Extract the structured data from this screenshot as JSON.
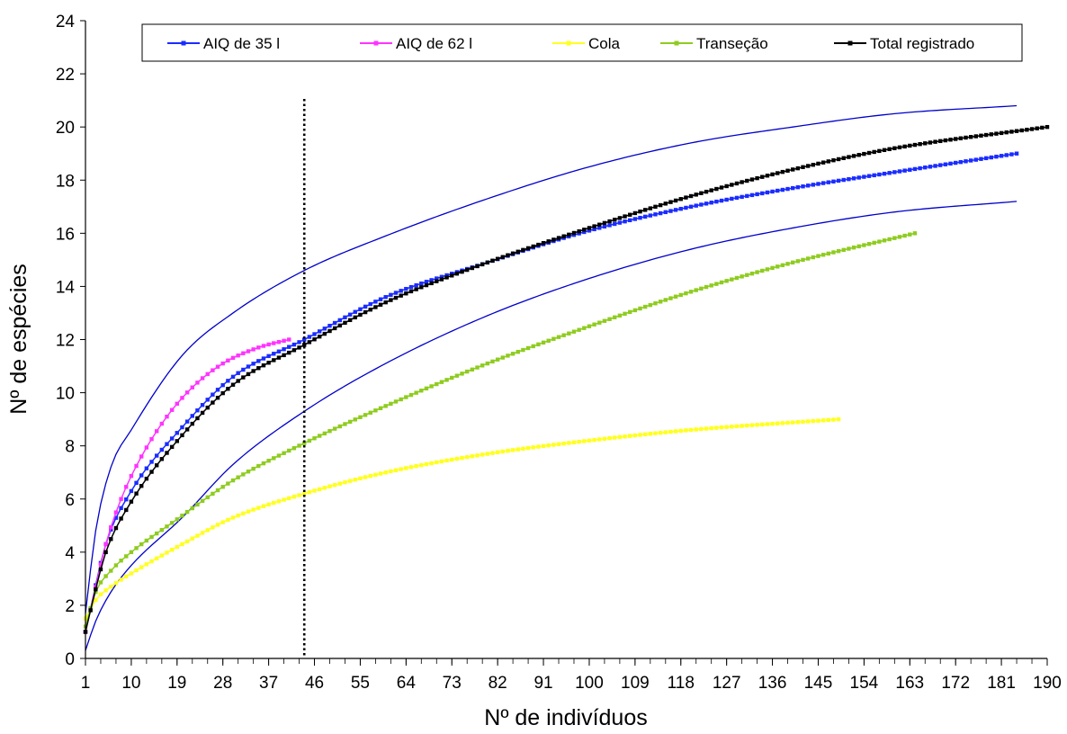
{
  "chart_data": {
    "type": "line",
    "xlabel": "Nº de indivíduos",
    "ylabel": "Nº de espécies",
    "xlim": [
      1,
      190
    ],
    "ylim": [
      0,
      24
    ],
    "x_ticks": [
      "1",
      "10",
      "19",
      "28",
      "37",
      "46",
      "55",
      "64",
      "73",
      "82",
      "91",
      "100",
      "109",
      "118",
      "127",
      "136",
      "145",
      "154",
      "163",
      "172",
      "181",
      "190"
    ],
    "y_ticks": [
      "0",
      "2",
      "4",
      "6",
      "8",
      "10",
      "12",
      "14",
      "16",
      "18",
      "20",
      "22",
      "24"
    ],
    "legend_position": "top",
    "reference_line_x": 44,
    "series": [
      {
        "name": "AIQ de 35 l",
        "color": "#1a2cff",
        "marker": "square",
        "n": 184,
        "x": [
          1,
          5,
          10,
          20,
          30,
          44,
          60,
          80,
          100,
          120,
          140,
          160,
          184
        ],
        "y": [
          1,
          4.3,
          6.3,
          8.7,
          10.6,
          12.0,
          13.6,
          14.9,
          16.1,
          17.0,
          17.7,
          18.3,
          19.0
        ]
      },
      {
        "name": "AIQ de 62 l",
        "color": "#ff33ff",
        "marker": "square",
        "n": 41,
        "x": [
          1,
          3,
          5,
          8,
          12,
          17,
          22,
          28,
          35,
          41
        ],
        "y": [
          1,
          2.7,
          4.3,
          6.0,
          7.6,
          9.1,
          10.2,
          11.1,
          11.7,
          12.0
        ]
      },
      {
        "name": "Cola",
        "color": "#ffff22",
        "marker": "square",
        "n": 149,
        "x": [
          1,
          3,
          6,
          10,
          20,
          30,
          44,
          60,
          80,
          100,
          120,
          149
        ],
        "y": [
          1.5,
          2.2,
          2.7,
          3.2,
          4.3,
          5.3,
          6.2,
          7.0,
          7.7,
          8.2,
          8.6,
          9.0
        ]
      },
      {
        "name": "Transeção",
        "color": "#8ecc1f",
        "marker": "square",
        "n": 164,
        "x": [
          1,
          3,
          6,
          10,
          18,
          30,
          44,
          60,
          80,
          100,
          120,
          140,
          164
        ],
        "y": [
          1.2,
          2.5,
          3.3,
          4.0,
          5.1,
          6.7,
          8.1,
          9.5,
          11.1,
          12.5,
          13.8,
          14.9,
          16.0
        ]
      },
      {
        "name": "Total registrado",
        "color": "#000000",
        "marker": "square",
        "n": 190,
        "x": [
          1,
          3,
          5,
          10,
          20,
          30,
          44,
          60,
          80,
          100,
          120,
          140,
          160,
          190
        ],
        "y": [
          1,
          2.6,
          4.0,
          5.9,
          8.4,
          10.3,
          11.8,
          13.4,
          14.9,
          16.2,
          17.4,
          18.4,
          19.2,
          20.0
        ]
      }
    ],
    "confidence_bounds": [
      {
        "color": "#0000cc",
        "n": 184,
        "x": [
          1,
          3,
          6,
          10,
          20,
          30,
          44,
          60,
          80,
          100,
          120,
          140,
          160,
          184
        ],
        "y": [
          1.7,
          4.8,
          7.2,
          8.6,
          11.4,
          13.0,
          14.6,
          15.9,
          17.3,
          18.5,
          19.4,
          20.0,
          20.5,
          20.8
        ]
      },
      {
        "color": "#0000cc",
        "n": 184,
        "x": [
          1,
          3,
          6,
          10,
          20,
          30,
          44,
          60,
          80,
          100,
          120,
          140,
          160,
          184
        ],
        "y": [
          0.3,
          1.4,
          2.5,
          3.5,
          5.3,
          7.3,
          9.3,
          11.1,
          12.9,
          14.3,
          15.4,
          16.2,
          16.8,
          17.2
        ]
      }
    ]
  }
}
